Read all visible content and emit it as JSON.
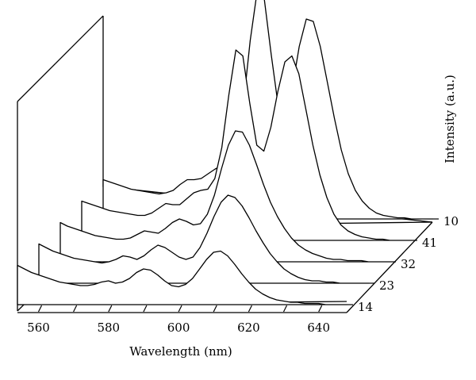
{
  "chart_data": {
    "type": "line",
    "style": "3d-waterfall",
    "xlabel": "Wavelength (nm)",
    "ylabel": "Intensity (a.u.)",
    "x_ticks": [
      560,
      580,
      600,
      620,
      640
    ],
    "xlim": [
      554,
      648
    ],
    "x": [
      554,
      556,
      558,
      560,
      562,
      564,
      566,
      568,
      570,
      572,
      574,
      576,
      578,
      580,
      582,
      584,
      586,
      588,
      590,
      592,
      594,
      596,
      598,
      600,
      602,
      604,
      606,
      608,
      610,
      612,
      614,
      616,
      618,
      620,
      622,
      624,
      626,
      628,
      630,
      632,
      634,
      636,
      638,
      640,
      642,
      644,
      646,
      648
    ],
    "series": [
      {
        "name": "14",
        "values": [
          0.33,
          0.3,
          0.27,
          0.25,
          0.23,
          0.21,
          0.19,
          0.18,
          0.17,
          0.16,
          0.16,
          0.17,
          0.19,
          0.2,
          0.18,
          0.19,
          0.22,
          0.27,
          0.3,
          0.29,
          0.25,
          0.2,
          0.16,
          0.15,
          0.17,
          0.22,
          0.3,
          0.38,
          0.44,
          0.45,
          0.41,
          0.34,
          0.26,
          0.19,
          0.13,
          0.09,
          0.06,
          0.04,
          0.03,
          0.02,
          0.02,
          0.01,
          0.01,
          0.01,
          0.0,
          0.0,
          0.0,
          0.0
        ]
      },
      {
        "name": "23",
        "values": [
          0.33,
          0.3,
          0.27,
          0.25,
          0.23,
          0.21,
          0.2,
          0.19,
          0.18,
          0.17,
          0.18,
          0.2,
          0.23,
          0.22,
          0.2,
          0.23,
          0.28,
          0.32,
          0.3,
          0.26,
          0.22,
          0.2,
          0.22,
          0.3,
          0.42,
          0.56,
          0.68,
          0.74,
          0.72,
          0.65,
          0.55,
          0.44,
          0.34,
          0.25,
          0.18,
          0.12,
          0.08,
          0.05,
          0.03,
          0.02,
          0.02,
          0.01,
          0.01,
          0.0,
          0.0,
          0.0,
          0.0,
          0.0
        ]
      },
      {
        "name": "32",
        "values": [
          0.33,
          0.3,
          0.28,
          0.26,
          0.24,
          0.22,
          0.21,
          0.2,
          0.19,
          0.19,
          0.2,
          0.23,
          0.26,
          0.25,
          0.24,
          0.28,
          0.33,
          0.36,
          0.34,
          0.31,
          0.32,
          0.4,
          0.56,
          0.78,
          0.98,
          1.1,
          1.09,
          0.98,
          0.82,
          0.65,
          0.5,
          0.38,
          0.28,
          0.2,
          0.14,
          0.1,
          0.07,
          0.05,
          0.03,
          0.02,
          0.02,
          0.01,
          0.01,
          0.01,
          0.0,
          0.0,
          0.0,
          0.0
        ]
      },
      {
        "name": "41",
        "values": [
          0.33,
          0.31,
          0.29,
          0.27,
          0.25,
          0.24,
          0.23,
          0.22,
          0.21,
          0.21,
          0.23,
          0.27,
          0.31,
          0.3,
          0.3,
          0.35,
          0.4,
          0.42,
          0.43,
          0.52,
          0.78,
          1.22,
          1.6,
          1.55,
          1.15,
          0.8,
          0.75,
          0.95,
          1.25,
          1.5,
          1.55,
          1.4,
          1.1,
          0.8,
          0.55,
          0.36,
          0.22,
          0.13,
          0.08,
          0.05,
          0.03,
          0.02,
          0.01,
          0.01,
          0.0,
          0.0,
          0.0,
          0.0
        ]
      },
      {
        "name": "10",
        "values": [
          0.33,
          0.31,
          0.29,
          0.27,
          0.25,
          0.24,
          0.23,
          0.22,
          0.21,
          0.22,
          0.24,
          0.29,
          0.33,
          0.33,
          0.34,
          0.38,
          0.42,
          0.45,
          0.48,
          0.6,
          0.95,
          1.5,
          1.92,
          1.85,
          1.38,
          0.95,
          0.85,
          1.1,
          1.45,
          1.68,
          1.66,
          1.45,
          1.15,
          0.85,
          0.58,
          0.38,
          0.24,
          0.15,
          0.09,
          0.05,
          0.03,
          0.02,
          0.01,
          0.01,
          0.0,
          0.0,
          0.0,
          0.0
        ]
      }
    ]
  }
}
